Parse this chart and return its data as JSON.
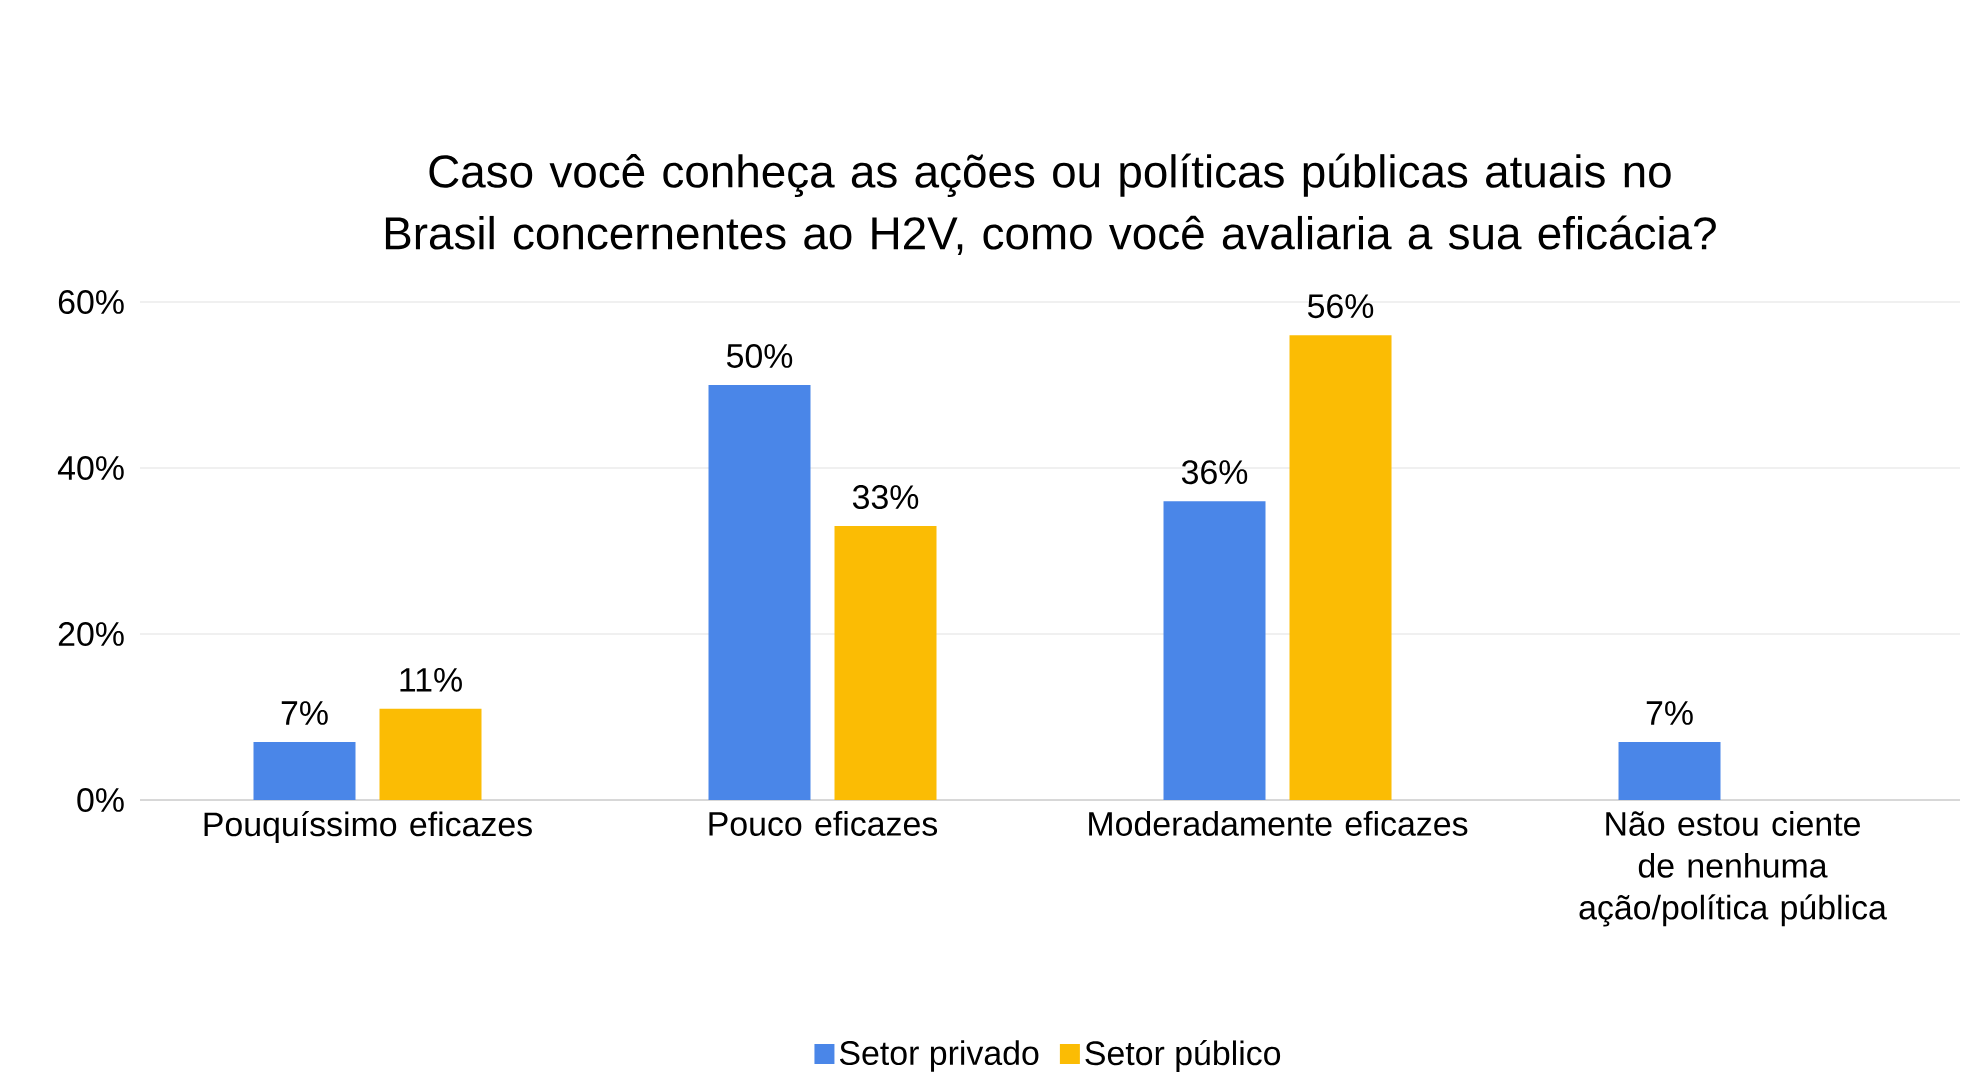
{
  "chart_data": {
    "type": "bar",
    "title": "Caso você conheça as ações ou políticas públicas atuais no Brasil concernentes ao H2V, como você avaliaria a sua eficácia?",
    "categories": [
      "Pouquíssimo eficazes",
      "Pouco eficazes",
      "Moderadamente eficazes",
      "Não estou ciente de nenhuma ação/política pública"
    ],
    "series": [
      {
        "name": "Setor privado",
        "color": "#4a86e8",
        "values": [
          7,
          50,
          36,
          7
        ],
        "value_labels": [
          "7%",
          "50%",
          "36%",
          "7%"
        ]
      },
      {
        "name": "Setor público",
        "color": "#fbbc04",
        "values": [
          11,
          33,
          56,
          null
        ],
        "value_labels": [
          "11%",
          "33%",
          "56%",
          null
        ]
      }
    ],
    "ylim": [
      0,
      60
    ],
    "yticks": [
      {
        "value": 0,
        "label": "0%"
      },
      {
        "value": 20,
        "label": "20%"
      },
      {
        "value": 40,
        "label": "40%"
      },
      {
        "value": 60,
        "label": "60%"
      }
    ],
    "grid": "y",
    "legend": "bottom"
  }
}
